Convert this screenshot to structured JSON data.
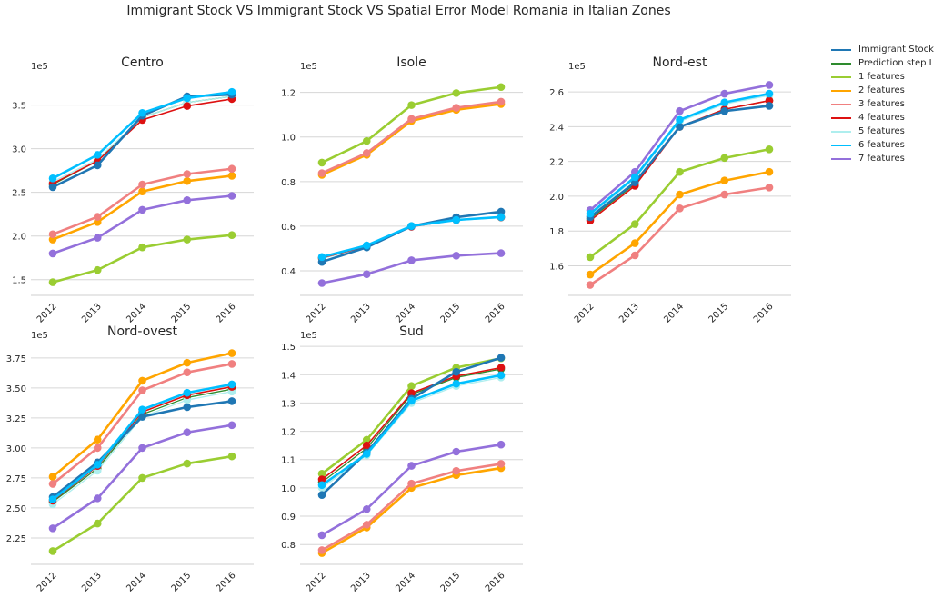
{
  "title": "Immigrant Stock VS Immigrant Stock VS Spatial Error Model Romania in Italian Zones",
  "legend": [
    {
      "label": "Immigrant Stock",
      "color": "#1f77b4"
    },
    {
      "label": "Prediction step I",
      "color": "#2e8b2e"
    },
    {
      "label": "1 features",
      "color": "#9acd32"
    },
    {
      "label": "2 features",
      "color": "#ffa500"
    },
    {
      "label": "3 features",
      "color": "#f08080"
    },
    {
      "label": "4 features",
      "color": "#dd1111"
    },
    {
      "label": "5 features",
      "color": "#aeeeee"
    },
    {
      "label": "6 features",
      "color": "#00bfff"
    },
    {
      "label": "7 features",
      "color": "#9370db"
    }
  ],
  "chart_data": [
    {
      "type": "line",
      "title": "Centro",
      "exponent_label": "1e5",
      "x": [
        "2012",
        "2013",
        "2014",
        "2015",
        "2016"
      ],
      "yticks": [
        "1.5",
        "2.0",
        "2.5",
        "3.0",
        "3.5"
      ],
      "ylim": [
        1.32,
        3.85
      ],
      "grid": true,
      "series": [
        {
          "name": "Immigrant Stock",
          "values": [
            2.56,
            2.81,
            3.38,
            3.6,
            3.62
          ]
        },
        {
          "name": "Prediction step I",
          "values": [
            2.59,
            2.86,
            3.36,
            3.53,
            3.6
          ]
        },
        {
          "name": "1 features",
          "values": [
            1.47,
            1.61,
            1.87,
            1.96,
            2.01
          ]
        },
        {
          "name": "2 features",
          "values": [
            1.96,
            2.16,
            2.51,
            2.63,
            2.69
          ]
        },
        {
          "name": "3 features",
          "values": [
            2.02,
            2.22,
            2.59,
            2.71,
            2.77
          ]
        },
        {
          "name": "4 features",
          "values": [
            2.6,
            2.86,
            3.33,
            3.49,
            3.57
          ]
        },
        {
          "name": "5 features",
          "values": [
            2.62,
            2.88,
            3.36,
            3.53,
            3.6
          ]
        },
        {
          "name": "6 features",
          "values": [
            2.66,
            2.93,
            3.41,
            3.58,
            3.65
          ]
        },
        {
          "name": "7 features",
          "values": [
            1.8,
            1.98,
            2.3,
            2.41,
            2.46
          ]
        }
      ]
    },
    {
      "type": "line",
      "title": "Isole",
      "exponent_label": "1e5",
      "x": [
        "2012",
        "2013",
        "2014",
        "2015",
        "2016"
      ],
      "yticks": [
        "0.4",
        "0.6",
        "0.8",
        "1.0",
        "1.2"
      ],
      "ylim": [
        0.29,
        1.28
      ],
      "grid": true,
      "series": [
        {
          "name": "Immigrant Stock",
          "values": [
            0.44,
            0.505,
            0.6,
            0.64,
            0.665
          ]
        },
        {
          "name": "Prediction step I",
          "values": [
            0.455,
            0.51,
            0.6,
            0.63,
            0.64
          ]
        },
        {
          "name": "1 features",
          "values": [
            0.885,
            0.982,
            1.143,
            1.197,
            1.224
          ]
        },
        {
          "name": "2 features",
          "values": [
            0.83,
            0.92,
            1.072,
            1.122,
            1.148
          ]
        },
        {
          "name": "3 features",
          "values": [
            0.838,
            0.928,
            1.081,
            1.131,
            1.158
          ]
        },
        {
          "name": "4 features",
          "values": [
            0.458,
            0.51,
            0.598,
            0.628,
            0.64
          ]
        },
        {
          "name": "5 features",
          "values": [
            0.455,
            0.508,
            0.598,
            0.626,
            0.638
          ]
        },
        {
          "name": "6 features",
          "values": [
            0.462,
            0.514,
            0.601,
            0.628,
            0.641
          ]
        },
        {
          "name": "7 features",
          "values": [
            0.345,
            0.385,
            0.447,
            0.468,
            0.479
          ]
        }
      ]
    },
    {
      "type": "line",
      "title": "Nord-est",
      "exponent_label": "1e5",
      "x": [
        "2012",
        "2013",
        "2014",
        "2015",
        "2016"
      ],
      "yticks": [
        "1.6",
        "1.8",
        "2.0",
        "2.2",
        "2.4",
        "2.6"
      ],
      "ylim": [
        1.43,
        2.7
      ],
      "grid": true,
      "series": [
        {
          "name": "Immigrant Stock",
          "values": [
            1.88,
            2.08,
            2.4,
            2.49,
            2.52
          ]
        },
        {
          "name": "Prediction step I",
          "values": [
            1.87,
            2.07,
            2.4,
            2.5,
            2.55
          ]
        },
        {
          "name": "1 features",
          "values": [
            1.65,
            1.84,
            2.14,
            2.22,
            2.27
          ]
        },
        {
          "name": "2 features",
          "values": [
            1.55,
            1.73,
            2.01,
            2.09,
            2.14
          ]
        },
        {
          "name": "3 features",
          "values": [
            1.49,
            1.66,
            1.93,
            2.01,
            2.05
          ]
        },
        {
          "name": "4 features",
          "values": [
            1.86,
            2.06,
            2.4,
            2.5,
            2.55
          ]
        },
        {
          "name": "5 features",
          "values": [
            1.89,
            2.1,
            2.43,
            2.53,
            2.58
          ]
        },
        {
          "name": "6 features",
          "values": [
            1.9,
            2.11,
            2.44,
            2.54,
            2.59
          ]
        },
        {
          "name": "7 features",
          "values": [
            1.92,
            2.14,
            2.49,
            2.59,
            2.64
          ]
        }
      ]
    },
    {
      "type": "line",
      "title": "Nord-ovest",
      "exponent_label": "1e5",
      "x": [
        "2012",
        "2013",
        "2014",
        "2015",
        "2016"
      ],
      "yticks": [
        "2.25",
        "2.50",
        "2.75",
        "3.00",
        "3.25",
        "3.50",
        "3.75"
      ],
      "ylim": [
        2.03,
        3.87
      ],
      "grid": true,
      "series": [
        {
          "name": "Immigrant Stock",
          "values": [
            2.59,
            2.88,
            3.26,
            3.34,
            3.39
          ]
        },
        {
          "name": "Prediction step I",
          "values": [
            2.55,
            2.83,
            3.28,
            3.42,
            3.49
          ]
        },
        {
          "name": "1 features",
          "values": [
            2.14,
            2.37,
            2.75,
            2.87,
            2.93
          ]
        },
        {
          "name": "2 features",
          "values": [
            2.76,
            3.07,
            3.56,
            3.71,
            3.79
          ]
        },
        {
          "name": "3 features",
          "values": [
            2.7,
            3.0,
            3.48,
            3.63,
            3.7
          ]
        },
        {
          "name": "4 features",
          "values": [
            2.56,
            2.85,
            3.3,
            3.44,
            3.51
          ]
        },
        {
          "name": "5 features",
          "values": [
            2.53,
            2.81,
            3.26,
            3.4,
            3.47
          ]
        },
        {
          "name": "6 features",
          "values": [
            2.57,
            2.86,
            3.32,
            3.46,
            3.53
          ]
        },
        {
          "name": "7 features",
          "values": [
            2.33,
            2.58,
            3.0,
            3.13,
            3.19
          ]
        }
      ]
    },
    {
      "type": "line",
      "title": "Sud",
      "exponent_label": "1e5",
      "x": [
        "2012",
        "2013",
        "2014",
        "2015",
        "2016"
      ],
      "yticks": [
        "0.8",
        "0.9",
        "1.0",
        "1.1",
        "1.2",
        "1.3",
        "1.4",
        "1.5"
      ],
      "ylim": [
        0.73,
        1.51
      ],
      "grid": true,
      "series": [
        {
          "name": "Immigrant Stock",
          "values": [
            0.975,
            1.125,
            1.315,
            1.41,
            1.46
          ]
        },
        {
          "name": "Prediction step I",
          "values": [
            1.02,
            1.14,
            1.33,
            1.39,
            1.42
          ]
        },
        {
          "name": "1 features",
          "values": [
            1.05,
            1.17,
            1.36,
            1.425,
            1.458
          ]
        },
        {
          "name": "2 features",
          "values": [
            0.77,
            0.86,
            1.0,
            1.045,
            1.07
          ]
        },
        {
          "name": "3 features",
          "values": [
            0.78,
            0.87,
            1.015,
            1.06,
            1.085
          ]
        },
        {
          "name": "4 features",
          "values": [
            1.03,
            1.15,
            1.335,
            1.395,
            1.425
          ]
        },
        {
          "name": "5 features",
          "values": [
            1.0,
            1.115,
            1.3,
            1.36,
            1.39
          ]
        },
        {
          "name": "6 features",
          "values": [
            1.01,
            1.12,
            1.308,
            1.368,
            1.398
          ]
        },
        {
          "name": "7 features",
          "values": [
            0.833,
            0.925,
            1.078,
            1.128,
            1.153
          ]
        }
      ]
    }
  ]
}
